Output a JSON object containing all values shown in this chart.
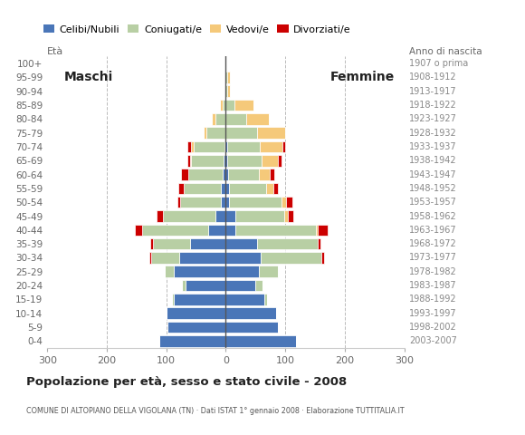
{
  "age_groups": [
    "100+",
    "95-99",
    "90-94",
    "85-89",
    "80-84",
    "75-79",
    "70-74",
    "65-69",
    "60-64",
    "55-59",
    "50-54",
    "45-49",
    "40-44",
    "35-39",
    "30-34",
    "25-29",
    "20-24",
    "15-19",
    "10-14",
    "5-9",
    "0-4"
  ],
  "birth_years": [
    "1907 o prima",
    "1908-1912",
    "1913-1917",
    "1918-1922",
    "1923-1927",
    "1928-1932",
    "1933-1937",
    "1938-1942",
    "1943-1947",
    "1948-1952",
    "1953-1957",
    "1958-1962",
    "1963-1967",
    "1968-1972",
    "1973-1977",
    "1978-1982",
    "1983-1987",
    "1988-1992",
    "1993-1997",
    "1998-2002",
    "2003-2007"
  ],
  "male": {
    "celibi": [
      0,
      0,
      0,
      0,
      0,
      0,
      2,
      3,
      5,
      8,
      8,
      18,
      30,
      60,
      78,
      88,
      68,
      88,
      100,
      98,
      112
    ],
    "coniugati": [
      0,
      0,
      0,
      5,
      18,
      32,
      52,
      55,
      58,
      62,
      68,
      88,
      110,
      62,
      48,
      14,
      5,
      2,
      0,
      0,
      0
    ],
    "vedovi": [
      0,
      0,
      0,
      5,
      5,
      5,
      4,
      2,
      0,
      0,
      0,
      0,
      0,
      0,
      0,
      0,
      0,
      0,
      0,
      0,
      0
    ],
    "divorziati": [
      0,
      0,
      0,
      0,
      0,
      0,
      6,
      5,
      12,
      10,
      5,
      10,
      12,
      5,
      3,
      0,
      0,
      0,
      0,
      0,
      0
    ]
  },
  "female": {
    "nubili": [
      0,
      0,
      0,
      0,
      0,
      0,
      2,
      2,
      4,
      6,
      6,
      16,
      16,
      52,
      58,
      55,
      50,
      65,
      85,
      88,
      118
    ],
    "coniugate": [
      0,
      2,
      2,
      15,
      35,
      52,
      55,
      58,
      52,
      62,
      88,
      82,
      135,
      102,
      102,
      32,
      12,
      4,
      0,
      0,
      0
    ],
    "vedove": [
      0,
      5,
      5,
      32,
      38,
      48,
      38,
      28,
      18,
      12,
      8,
      6,
      4,
      0,
      0,
      0,
      0,
      0,
      0,
      0,
      0
    ],
    "divorziate": [
      0,
      0,
      0,
      0,
      0,
      0,
      5,
      5,
      8,
      8,
      10,
      10,
      16,
      5,
      5,
      0,
      0,
      0,
      0,
      0,
      0
    ]
  },
  "colors": {
    "celibi": "#4a76b8",
    "coniugati": "#b8cfa4",
    "vedovi": "#f5c97a",
    "divorziati": "#cc0000"
  },
  "xlim": 300,
  "title": "Popolazione per età, sesso e stato civile - 2008",
  "subtitle": "COMUNE DI ALTOPIANO DELLA VIGOLANA (TN) · Dati ISTAT 1° gennaio 2008 · Elaborazione TUTTITALIA.IT",
  "legend_labels": [
    "Celibi/Nubili",
    "Coniugati/e",
    "Vedovi/e",
    "Divorziati/e"
  ],
  "eta_label": "À",
  "anno_label": "Anno di nascita",
  "maschi_label": "Maschi",
  "femmine_label": "Femmine",
  "bg_color": "#ffffff",
  "grid_color": "#bbbbbb",
  "bar_height": 0.82,
  "bar_edgecolor": "#ffffff",
  "bar_linewidth": 0.5
}
